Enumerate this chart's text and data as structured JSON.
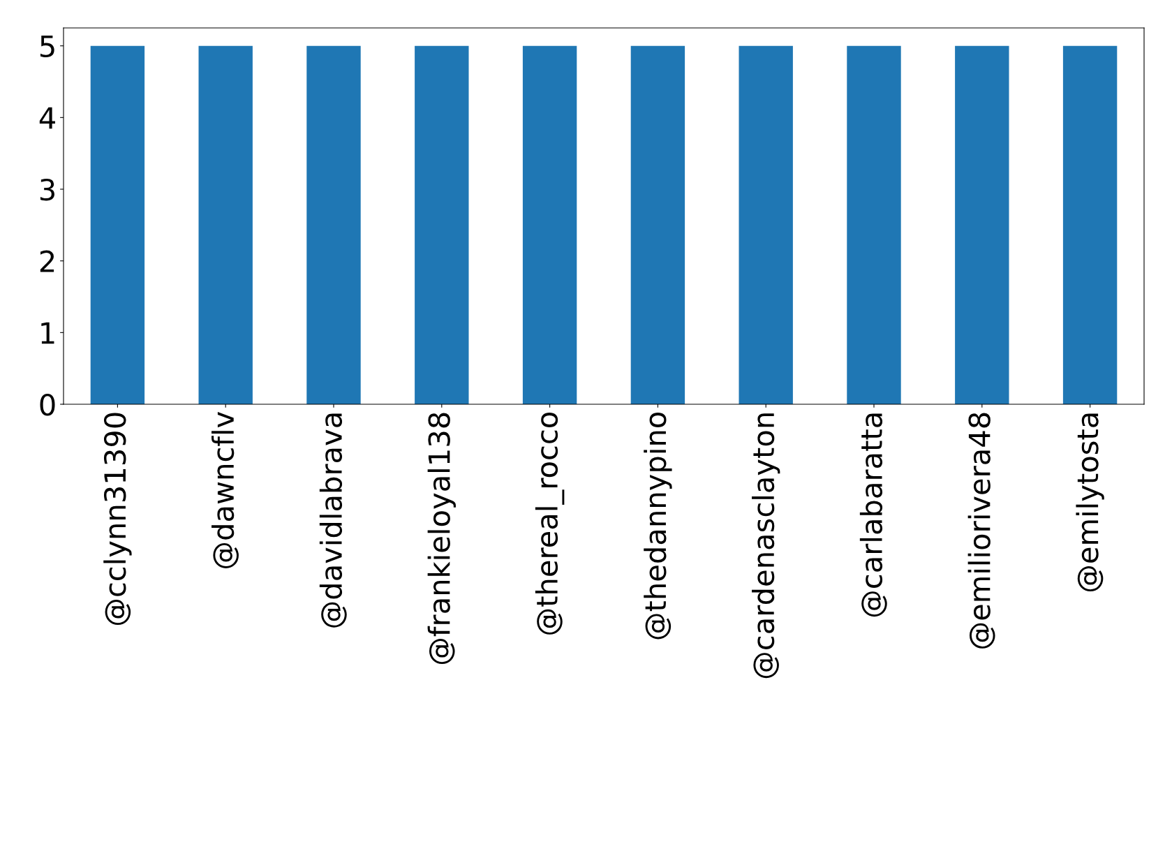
{
  "chart_data": {
    "type": "bar",
    "categories": [
      "@cclynn31390",
      "@dawncflv",
      "@davidlabrava",
      "@frankieloyal138",
      "@thereal_rocco",
      "@thedannypino",
      "@cardenasclayton",
      "@carlabaratta",
      "@emiliorivera48",
      "@emilytosta"
    ],
    "values": [
      5,
      5,
      5,
      5,
      5,
      5,
      5,
      5,
      5,
      5
    ],
    "color": "#1f77b4",
    "ylim": [
      0,
      5.25
    ],
    "yticks": [
      0,
      1,
      2,
      3,
      4,
      5
    ],
    "grid": false,
    "legend": false
  }
}
